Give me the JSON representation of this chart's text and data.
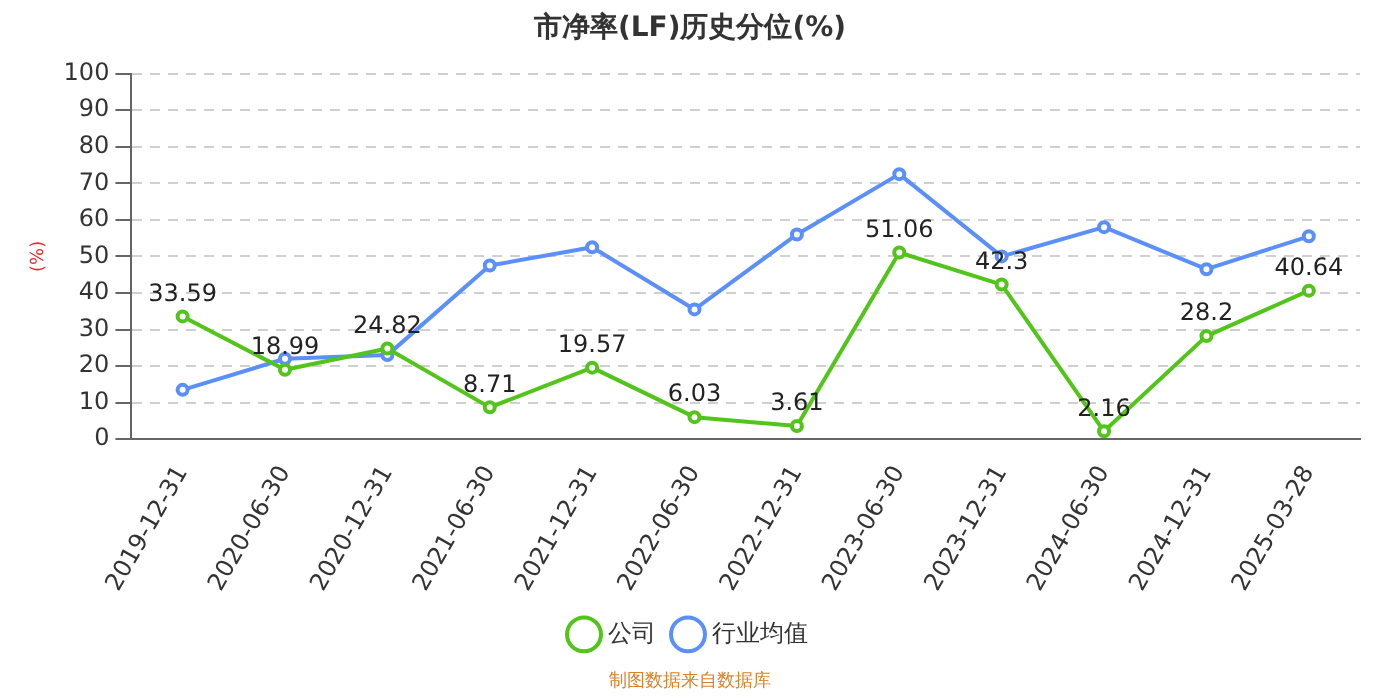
{
  "chart_data": {
    "type": "line",
    "title": "市净率(LF)历史分位(%)",
    "ylabel": "(%)",
    "categories": [
      "2019-12-31",
      "2020-06-30",
      "2020-12-31",
      "2021-06-30",
      "2021-12-31",
      "2022-06-30",
      "2022-12-31",
      "2023-06-30",
      "2023-12-31",
      "2024-06-30",
      "2024-12-31",
      "2025-03-28"
    ],
    "series": [
      {
        "name": "公司",
        "color": "#52c41a",
        "values": [
          33.59,
          18.99,
          24.82,
          8.71,
          19.57,
          6.03,
          3.61,
          51.06,
          42.3,
          2.16,
          28.2,
          40.64
        ],
        "value_labels": [
          "33.59",
          "18.99",
          "24.82",
          "8.71",
          "19.57",
          "6.03",
          "3.61",
          "51.06",
          "42.3",
          "2.16",
          "28.2",
          "40.64"
        ]
      },
      {
        "name": "行业均值",
        "color": "#5b8ff9",
        "values": [
          13.5,
          22,
          23,
          47.5,
          52.5,
          35.5,
          56,
          72.5,
          50,
          58,
          46.5,
          55.5
        ]
      }
    ],
    "ylim": [
      0,
      100
    ],
    "yticks": [
      0,
      10,
      20,
      30,
      40,
      50,
      60,
      70,
      80,
      90,
      100
    ],
    "grid": "y",
    "legend": "bottom",
    "marker": "circle",
    "line_style": "solid",
    "annotations": [
      "制图数据来自数据库"
    ]
  }
}
